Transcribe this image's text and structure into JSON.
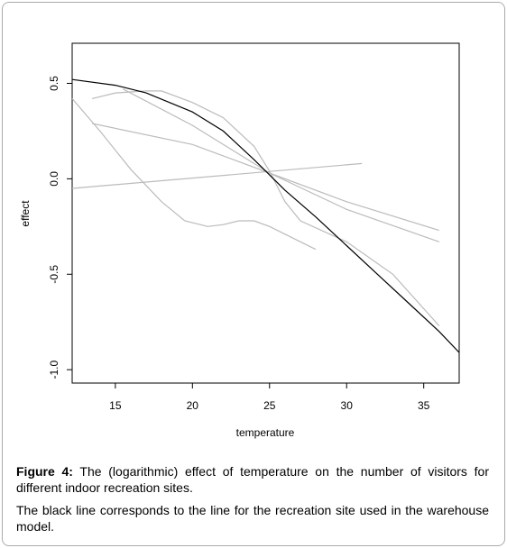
{
  "chart_data": {
    "type": "line",
    "xlabel": "temperature",
    "ylabel": "effect",
    "xlim": [
      12.2,
      37.3
    ],
    "ylim": [
      -1.07,
      0.71
    ],
    "xticks": [
      15,
      20,
      25,
      30,
      35
    ],
    "yticks": [
      {
        "value": -1,
        "label": "-1.0"
      },
      -0.5,
      {
        "value": 0,
        "label": "0.0"
      },
      0.5
    ],
    "grid": false,
    "series": [
      {
        "color": "#bbbbbb",
        "x": [
          13.5,
          15,
          17,
          18,
          20,
          22,
          24,
          25,
          26,
          27,
          30,
          33,
          36
        ],
        "values": [
          0.42,
          0.45,
          0.46,
          0.46,
          0.4,
          0.32,
          0.17,
          0.04,
          -0.12,
          -0.22,
          -0.33,
          -0.5,
          -0.77
        ]
      },
      {
        "color": "#bbbbbb",
        "x": [
          13.5,
          20,
          25,
          30,
          36
        ],
        "values": [
          0.29,
          0.18,
          0.03,
          -0.12,
          -0.27
        ]
      },
      {
        "color": "#bbbbbb",
        "x": [
          15.5,
          20,
          25,
          30,
          36
        ],
        "values": [
          0.47,
          0.28,
          0.03,
          -0.16,
          -0.33
        ]
      },
      {
        "color": "#bbbbbb",
        "x": [
          12.2,
          14,
          16,
          18,
          19.5,
          21,
          22,
          23,
          24,
          25,
          26,
          28
        ],
        "values": [
          0.42,
          0.25,
          0.05,
          -0.12,
          -0.22,
          -0.25,
          -0.24,
          -0.22,
          -0.22,
          -0.25,
          -0.29,
          -0.37
        ]
      },
      {
        "color": "#bbbbbb",
        "x": [
          12.2,
          31
        ],
        "values": [
          -0.05,
          0.08
        ]
      },
      {
        "color": "#000000",
        "x": [
          12.2,
          15,
          17,
          20,
          22,
          24,
          25,
          26,
          28,
          30,
          32,
          34,
          36,
          37.3
        ],
        "values": [
          0.52,
          0.49,
          0.45,
          0.35,
          0.25,
          0.1,
          0.02,
          -0.06,
          -0.2,
          -0.35,
          -0.5,
          -0.65,
          -0.8,
          -0.91
        ]
      }
    ]
  },
  "caption": {
    "label": "Figure 4:",
    "text": " The (logarithmic) effect of temperature on the number of visitors for different indoor recreation sites.",
    "note": "The black line corresponds to the line for the recreation site used in the warehouse model."
  }
}
